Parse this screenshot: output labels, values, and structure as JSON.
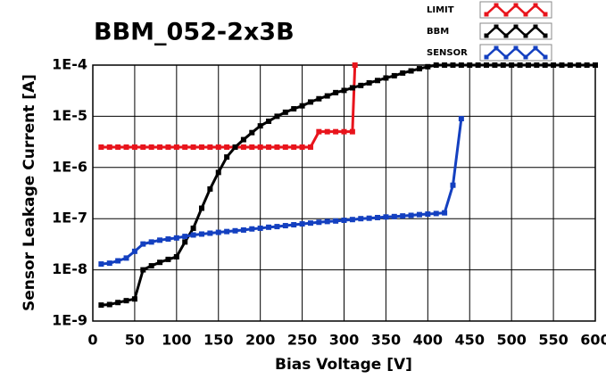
{
  "chart_data": {
    "type": "line",
    "title": "BBM_052-2x3B",
    "x_label": "Bias Voltage [V]",
    "y_label": "Sensor Leakage Current [A]",
    "log_y": true,
    "grid": true,
    "legend": "top-right",
    "xlim": [
      0,
      600
    ],
    "xticks": [
      0,
      50,
      100,
      150,
      200,
      250,
      300,
      350,
      400,
      450,
      500,
      550,
      600
    ],
    "ylim": [
      1e-09,
      0.0001
    ],
    "yticks": [
      {
        "value": 1e-09,
        "label": "1E-9"
      },
      {
        "value": 1e-08,
        "label": "1E-8"
      },
      {
        "value": 1e-07,
        "label": "1E-7"
      },
      {
        "value": 1e-06,
        "label": "1E-6"
      },
      {
        "value": 1e-05,
        "label": "1E-5"
      },
      {
        "value": 0.0001,
        "label": "1E-4"
      }
    ],
    "series": [
      {
        "name": "LIMIT",
        "color": "#e8141c",
        "x": [
          10,
          20,
          30,
          40,
          50,
          60,
          70,
          80,
          90,
          100,
          110,
          120,
          130,
          140,
          150,
          160,
          170,
          180,
          190,
          200,
          210,
          220,
          230,
          240,
          250,
          260,
          270,
          280,
          290,
          300,
          310,
          313
        ],
        "values": [
          2.5e-06,
          2.5e-06,
          2.5e-06,
          2.5e-06,
          2.5e-06,
          2.5e-06,
          2.5e-06,
          2.5e-06,
          2.5e-06,
          2.5e-06,
          2.5e-06,
          2.5e-06,
          2.5e-06,
          2.5e-06,
          2.5e-06,
          2.5e-06,
          2.5e-06,
          2.5e-06,
          2.5e-06,
          2.5e-06,
          2.5e-06,
          2.5e-06,
          2.5e-06,
          2.5e-06,
          2.5e-06,
          2.5e-06,
          5e-06,
          5e-06,
          5e-06,
          5e-06,
          5e-06,
          0.0001
        ]
      },
      {
        "name": "BBM",
        "color": "#000000",
        "x": [
          10,
          20,
          30,
          40,
          50,
          60,
          70,
          80,
          90,
          100,
          110,
          120,
          130,
          140,
          150,
          160,
          170,
          180,
          190,
          200,
          210,
          220,
          230,
          240,
          250,
          260,
          270,
          280,
          290,
          300,
          310,
          320,
          330,
          340,
          350,
          360,
          370,
          380,
          390,
          400,
          410,
          420,
          430,
          440,
          450,
          460,
          470,
          480,
          490,
          500,
          510,
          520,
          530,
          540,
          550,
          560,
          570,
          580,
          590,
          600
        ],
        "values": [
          2.05e-09,
          2.1e-09,
          2.3e-09,
          2.5e-09,
          2.7e-09,
          1e-08,
          1.2e-08,
          1.4e-08,
          1.6e-08,
          1.8e-08,
          3.5e-08,
          6.5e-08,
          1.6e-07,
          3.8e-07,
          8e-07,
          1.6e-06,
          2.5e-06,
          3.5e-06,
          4.8e-06,
          6.5e-06,
          8e-06,
          1e-05,
          1.2e-05,
          1.4e-05,
          1.6e-05,
          1.9e-05,
          2.2e-05,
          2.5e-05,
          2.9e-05,
          3.2e-05,
          3.6e-05,
          4e-05,
          4.5e-05,
          5e-05,
          5.6e-05,
          6.2e-05,
          7e-05,
          7.7e-05,
          8.5e-05,
          9.3e-05,
          0.0001,
          0.0001,
          0.0001,
          0.0001,
          0.0001,
          0.0001,
          0.0001,
          0.0001,
          0.0001,
          0.0001,
          0.0001,
          0.0001,
          0.0001,
          0.0001,
          0.0001,
          0.0001,
          0.0001,
          0.0001,
          0.0001,
          0.0001
        ]
      },
      {
        "name": "SENSOR",
        "color": "#1440c0",
        "x": [
          10,
          20,
          30,
          40,
          50,
          60,
          70,
          80,
          90,
          100,
          110,
          120,
          130,
          140,
          150,
          160,
          170,
          180,
          190,
          200,
          210,
          220,
          230,
          240,
          250,
          260,
          270,
          280,
          290,
          300,
          310,
          320,
          330,
          340,
          350,
          360,
          370,
          380,
          390,
          400,
          410,
          420,
          430,
          440
        ],
        "values": [
          1.3e-08,
          1.35e-08,
          1.5e-08,
          1.7e-08,
          2.3e-08,
          3.2e-08,
          3.5e-08,
          3.8e-08,
          4e-08,
          4.2e-08,
          4.5e-08,
          4.8e-08,
          5e-08,
          5.2e-08,
          5.4e-08,
          5.6e-08,
          5.8e-08,
          6e-08,
          6.3e-08,
          6.5e-08,
          6.8e-08,
          7e-08,
          7.3e-08,
          7.6e-08,
          7.9e-08,
          8.2e-08,
          8.5e-08,
          8.8e-08,
          9e-08,
          9.3e-08,
          9.6e-08,
          1e-07,
          1.02e-07,
          1.05e-07,
          1.08e-07,
          1.1e-07,
          1.13e-07,
          1.16e-07,
          1.2e-07,
          1.23e-07,
          1.26e-07,
          1.3e-07,
          4.5e-07,
          9e-06
        ]
      }
    ]
  }
}
